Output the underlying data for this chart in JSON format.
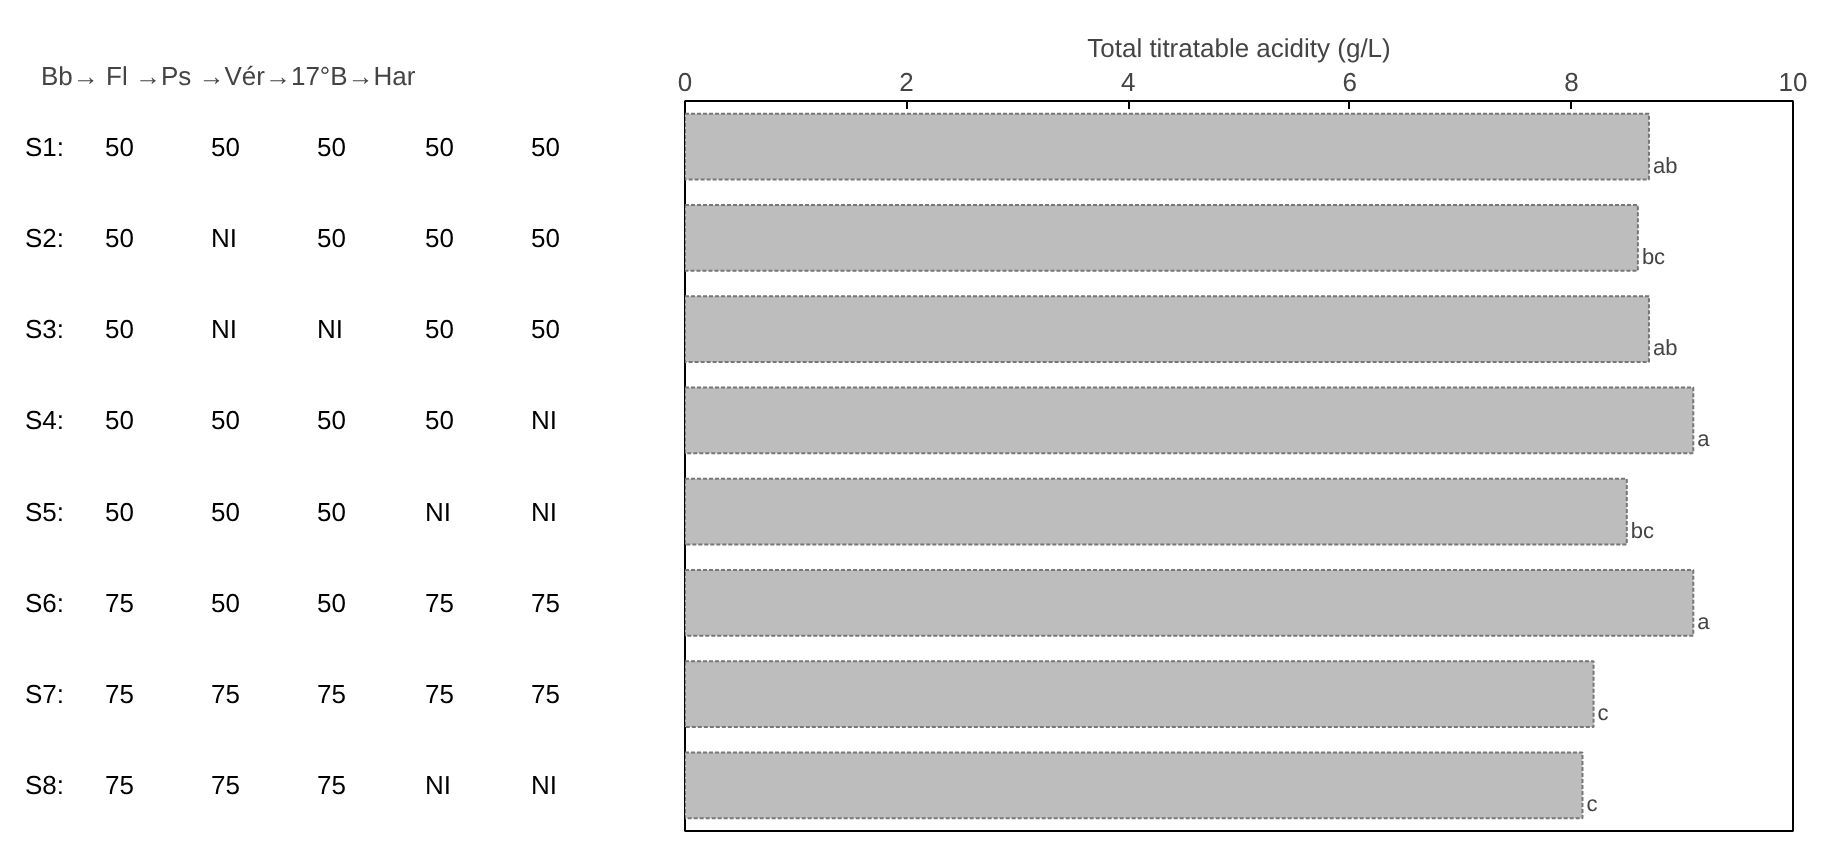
{
  "chart_data": {
    "type": "bar",
    "orientation": "horizontal",
    "xlabel": "Total titratable acidity (g/L)",
    "categories": [
      "S1: 50 50 50 50 50",
      "S2: 50 NI 50 50 50",
      "S3: 50 NI NI 50 50",
      "S4: 50 50 50 50 NI",
      "S5: 50 50 50 NI NI",
      "S6: 75 50 50 75 75",
      "S7: 75 75 75 75 75",
      "S8: 75 75 75 NI NI"
    ],
    "values": [
      8.7,
      8.6,
      8.7,
      9.1,
      8.5,
      9.1,
      8.2,
      8.1
    ],
    "value_labels": [
      "ab",
      "bc",
      "ab",
      "a",
      "bc",
      "a",
      "c",
      "c"
    ],
    "color": "#bdbdbd",
    "xlim": [
      0,
      10
    ],
    "xticks": [
      0,
      2,
      4,
      6,
      8,
      10
    ],
    "annotations": [
      "Bb→ Fl →Ps →Vér→17°B→Har"
    ],
    "grid": false
  }
}
